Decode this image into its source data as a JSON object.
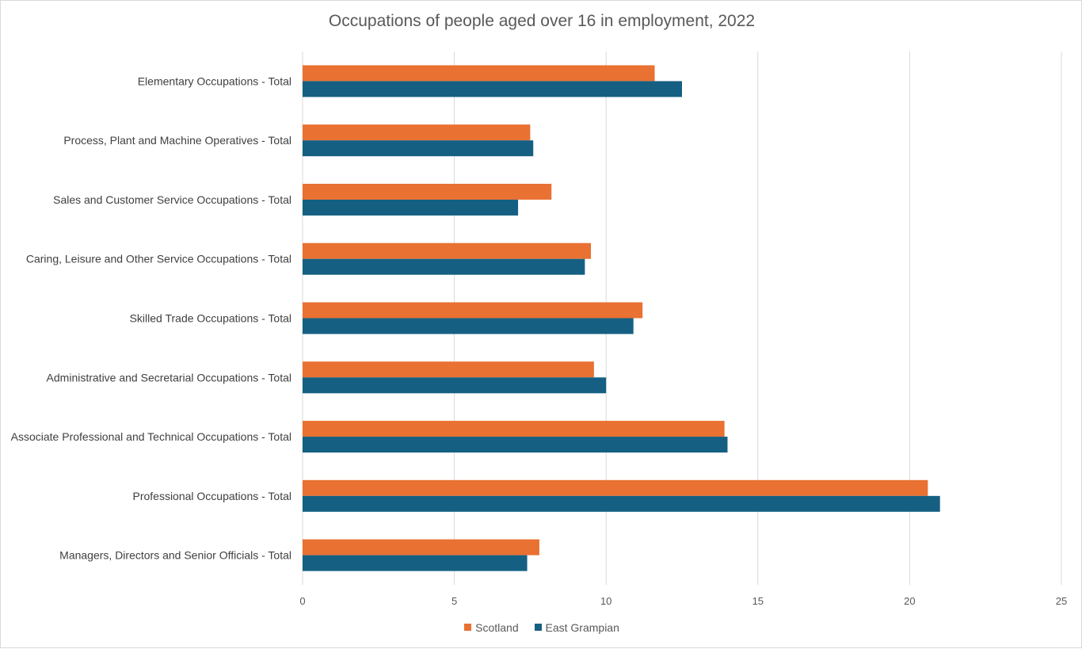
{
  "chart_data": {
    "type": "bar",
    "orientation": "horizontal",
    "title": "Occupations of people aged over 16 in employment, 2022",
    "categories": [
      "Elementary Occupations - Total",
      "Process, Plant and Machine Operatives - Total",
      "Sales and Customer Service Occupations - Total",
      "Caring, Leisure and Other Service Occupations - Total",
      "Skilled Trade Occupations - Total",
      "Administrative and Secretarial Occupations - Total",
      "Associate Professional and Technical Occupations - Total",
      "Professional Occupations - Total",
      "Managers, Directors and Senior Officials - Total"
    ],
    "series": [
      {
        "name": "Scotland",
        "color": "#e97132",
        "values": [
          11.6,
          7.5,
          8.2,
          9.5,
          11.2,
          9.6,
          13.9,
          20.6,
          7.8
        ]
      },
      {
        "name": "East Grampian",
        "color": "#156082",
        "values": [
          12.5,
          7.6,
          7.1,
          9.3,
          10.9,
          10.0,
          14.0,
          21.0,
          7.4
        ]
      }
    ],
    "xlim": [
      0,
      25
    ],
    "x_ticks": [
      "0",
      "5",
      "10",
      "15",
      "20",
      "25"
    ],
    "x_tick_values": [
      0,
      5,
      10,
      15,
      20,
      25
    ],
    "grid": true,
    "legend_position": "bottom"
  }
}
